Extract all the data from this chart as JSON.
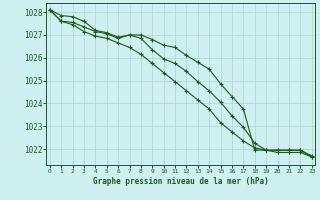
{
  "background_color": "#cff0f0",
  "grid_color": "#b0d8d8",
  "line_color": "#1a5c1a",
  "xlabel": "Graphe pression niveau de la mer (hPa)",
  "xlabel_color": "#1a5c1a",
  "tick_color": "#1a5c1a",
  "ylim": [
    1021.3,
    1028.4
  ],
  "xlim": [
    -0.3,
    23.3
  ],
  "yticks": [
    1022,
    1023,
    1024,
    1025,
    1026,
    1027,
    1028
  ],
  "xticks": [
    0,
    1,
    2,
    3,
    4,
    5,
    6,
    7,
    8,
    9,
    10,
    11,
    12,
    13,
    14,
    15,
    16,
    17,
    18,
    19,
    20,
    21,
    22,
    23
  ],
  "series": [
    [
      1028.1,
      1027.85,
      1027.8,
      1027.6,
      1027.2,
      1027.1,
      1026.9,
      1027.0,
      1027.0,
      1026.8,
      1026.55,
      1026.45,
      1026.1,
      1025.8,
      1025.5,
      1024.85,
      1024.3,
      1023.75,
      1021.95,
      1021.95,
      1021.95,
      1021.95,
      1021.95,
      1021.7
    ],
    [
      1028.1,
      1027.6,
      1027.55,
      1027.35,
      1027.15,
      1027.05,
      1026.85,
      1027.0,
      1026.85,
      1026.35,
      1025.95,
      1025.75,
      1025.4,
      1024.95,
      1024.55,
      1024.05,
      1023.45,
      1022.95,
      1022.25,
      1021.95,
      1021.85,
      1021.85,
      1021.85,
      1021.65
    ],
    [
      1028.1,
      1027.6,
      1027.45,
      1027.15,
      1026.95,
      1026.85,
      1026.65,
      1026.45,
      1026.15,
      1025.75,
      1025.35,
      1024.95,
      1024.55,
      1024.15,
      1023.75,
      1023.15,
      1022.75,
      1022.35,
      1022.05,
      1021.95,
      1021.95,
      1021.95,
      1021.95,
      1021.65
    ]
  ]
}
